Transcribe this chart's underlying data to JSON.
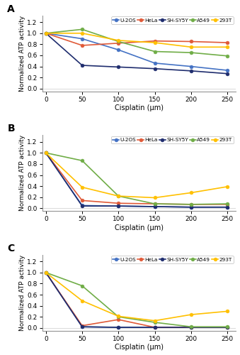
{
  "x": [
    0,
    50,
    100,
    150,
    200,
    250
  ],
  "panels": [
    {
      "label": "A",
      "series": {
        "U-2OS": [
          1.0,
          0.9,
          0.7,
          0.46,
          0.4,
          0.33
        ],
        "HeLa": [
          1.0,
          0.78,
          0.82,
          0.86,
          0.85,
          0.83
        ],
        "SH-SY5Y": [
          1.0,
          0.42,
          0.39,
          0.36,
          0.32,
          0.27
        ],
        "A549": [
          1.0,
          1.07,
          0.85,
          0.67,
          0.65,
          0.59
        ],
        "293T": [
          1.0,
          1.0,
          0.87,
          0.83,
          0.75,
          0.75
        ]
      }
    },
    {
      "label": "B",
      "series": {
        "U-2OS": [
          1.0,
          0.05,
          0.04,
          0.03,
          0.02,
          0.02
        ],
        "HeLa": [
          1.0,
          0.14,
          0.09,
          0.08,
          0.07,
          0.07
        ],
        "SH-SY5Y": [
          1.0,
          0.04,
          0.04,
          0.03,
          0.02,
          0.02
        ],
        "A549": [
          1.0,
          0.86,
          0.22,
          0.08,
          0.07,
          0.08
        ],
        "293T": [
          1.0,
          0.38,
          0.22,
          0.19,
          0.28,
          0.39
        ]
      }
    },
    {
      "label": "C",
      "series": {
        "U-2OS": [
          1.0,
          0.02,
          0.01,
          0.01,
          0.01,
          0.01
        ],
        "HeLa": [
          1.0,
          0.04,
          0.15,
          0.01,
          0.01,
          0.01
        ],
        "SH-SY5Y": [
          1.0,
          0.02,
          0.01,
          0.01,
          0.01,
          0.01
        ],
        "A549": [
          1.0,
          0.76,
          0.2,
          0.1,
          0.02,
          0.02
        ],
        "293T": [
          1.0,
          0.49,
          0.21,
          0.13,
          0.24,
          0.3
        ]
      }
    }
  ],
  "colors": {
    "U-2OS": "#4472c4",
    "HeLa": "#e05a38",
    "SH-SY5Y": "#1f2d6e",
    "A549": "#70ad47",
    "293T": "#ffc000"
  },
  "ylabel": "Normalized ATP activity",
  "xlabel": "Cisplatin (μm)",
  "ylim": [
    -0.05,
    1.32
  ],
  "yticks": [
    0.0,
    0.2,
    0.4,
    0.6,
    0.8,
    1.0,
    1.2
  ],
  "xticks": [
    0,
    50,
    100,
    150,
    200,
    250
  ],
  "legend_order": [
    "U-2OS",
    "HeLa",
    "SH-SY5Y",
    "A549",
    "293T"
  ]
}
